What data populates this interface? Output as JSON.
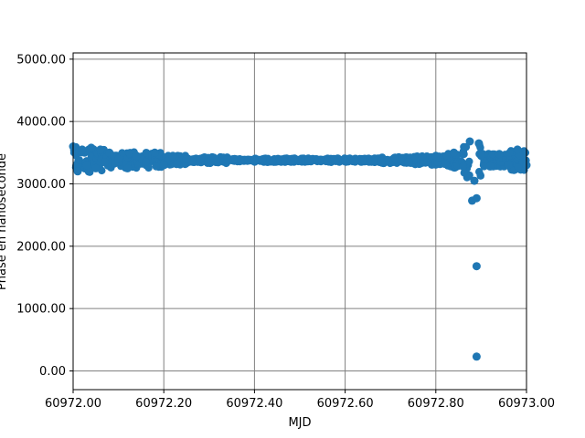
{
  "chart_data": {
    "type": "scatter",
    "title": "",
    "xlabel": "MJD",
    "ylabel": "Phase en nanoseconde",
    "xlim": [
      60972.0,
      60973.0
    ],
    "ylim": [
      -300,
      5100
    ],
    "x_ticks": [
      60972.0,
      60972.2,
      60972.4,
      60972.6,
      60972.8,
      60973.0
    ],
    "x_tick_labels": [
      "60972.00",
      "60972.20",
      "60972.40",
      "60972.60",
      "60972.80",
      "60973.00"
    ],
    "y_ticks": [
      0,
      1000,
      2000,
      3000,
      4000,
      5000
    ],
    "y_tick_labels": [
      "0.00",
      "1000.00",
      "2000.00",
      "3000.00",
      "4000.00",
      "5000.00"
    ],
    "grid": true,
    "grid_color": "#808080",
    "marker_color": "#1f77b4",
    "series": [
      {
        "x": [
          60972.0,
          60972.01,
          60972.02,
          60972.03,
          60972.04,
          60972.05,
          60972.06,
          60972.07,
          60972.08,
          60972.09,
          60972.1,
          60972.12,
          60972.14,
          60972.16,
          60972.18,
          60972.2,
          60972.22,
          60972.25,
          60972.28,
          60972.31,
          60972.34,
          60972.37,
          60972.4,
          60972.44,
          60972.48,
          60972.52,
          60972.56,
          60972.6,
          60972.64,
          60972.68,
          60972.71,
          60972.74,
          60972.77,
          60972.8,
          60972.82,
          60972.84,
          60972.86,
          60972.875,
          60972.88,
          60972.885,
          60972.89,
          60972.89,
          60972.89,
          60972.895,
          60972.9,
          60972.92,
          60972.94,
          60972.96,
          60972.98,
          60973.0
        ],
        "y": [
          3600,
          3200,
          3550,
          3300,
          3580,
          3250,
          3550,
          3350,
          3500,
          3450,
          3400,
          3250,
          3450,
          3350,
          3500,
          3300,
          3450,
          3400,
          3400,
          3420,
          3390,
          3380,
          3380,
          3360,
          3360,
          3370,
          3370,
          3360,
          3380,
          3360,
          3420,
          3350,
          3440,
          3450,
          3320,
          3500,
          3280,
          3680,
          2730,
          3050,
          2770,
          1680,
          230,
          3650,
          3450,
          3280,
          3480,
          3300,
          3550,
          3300
        ]
      }
    ]
  }
}
